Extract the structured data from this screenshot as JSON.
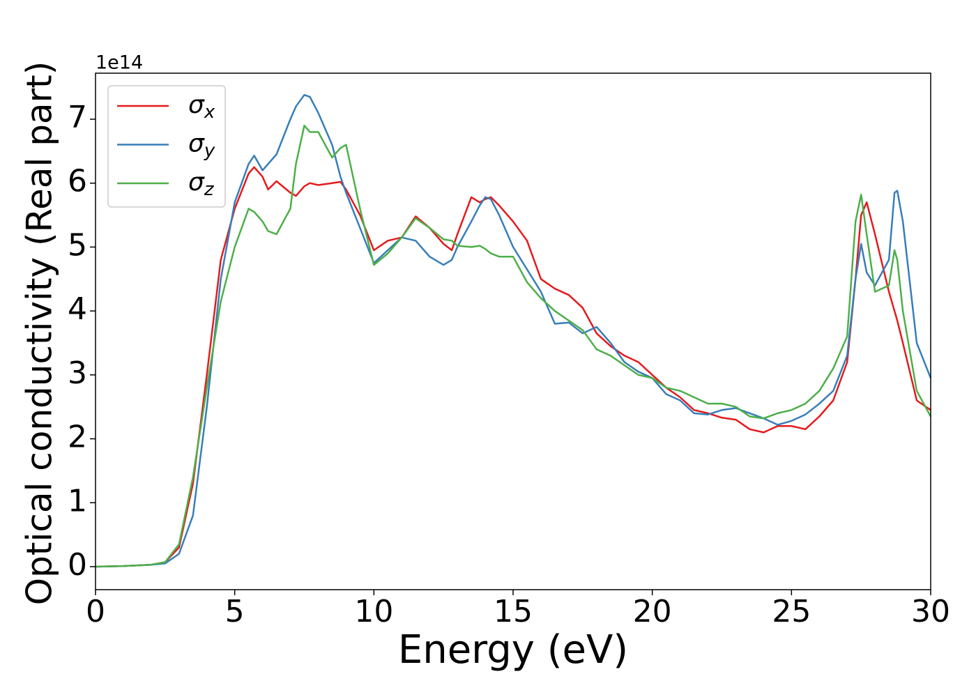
{
  "chart_data": {
    "type": "line",
    "ylabel": "Optical conductivity (Real part)",
    "xlabel": "Energy (eV)",
    "y_offset_label": "1e14",
    "x": [
      0,
      1,
      2,
      2.5,
      3,
      3.5,
      4,
      4.5,
      5,
      5.5,
      5.7,
      6,
      6.2,
      6.5,
      7,
      7.2,
      7.5,
      7.7,
      8,
      8.5,
      8.8,
      9,
      9.5,
      10,
      10.5,
      11,
      11.5,
      12,
      12.5,
      12.8,
      13,
      13.5,
      13.8,
      14,
      14.2,
      14.5,
      15,
      15.5,
      16,
      16.5,
      17,
      17.5,
      18,
      18.5,
      19,
      19.5,
      20,
      20.5,
      21,
      21.5,
      22,
      22.5,
      23,
      23.5,
      24,
      24.5,
      25,
      25.5,
      26,
      26.5,
      27,
      27.3,
      27.5,
      27.7,
      28,
      28.5,
      28.7,
      28.8,
      29,
      29.5,
      30
    ],
    "series": [
      {
        "name": "σx",
        "color": "#e41a1c",
        "values": [
          0,
          0.01,
          0.03,
          0.07,
          0.3,
          1.3,
          3.0,
          4.8,
          5.6,
          6.15,
          6.25,
          6.1,
          5.9,
          6.03,
          5.85,
          5.8,
          5.95,
          6.0,
          5.97,
          6.0,
          6.02,
          5.9,
          5.5,
          4.95,
          5.1,
          5.15,
          5.48,
          5.3,
          5.05,
          4.95,
          5.2,
          5.78,
          5.7,
          5.75,
          5.78,
          5.65,
          5.4,
          5.1,
          4.5,
          4.35,
          4.25,
          4.05,
          3.65,
          3.45,
          3.3,
          3.2,
          3.0,
          2.8,
          2.65,
          2.45,
          2.4,
          2.33,
          2.3,
          2.15,
          2.1,
          2.2,
          2.2,
          2.15,
          2.35,
          2.6,
          3.2,
          4.5,
          5.5,
          5.7,
          5.2,
          4.3,
          4.0,
          3.85,
          3.5,
          2.6,
          2.45
        ]
      },
      {
        "name": "σy",
        "color": "#377eb8",
        "values": [
          0,
          0.01,
          0.03,
          0.05,
          0.2,
          0.8,
          2.5,
          4.5,
          5.7,
          6.3,
          6.43,
          6.2,
          6.3,
          6.45,
          7.0,
          7.2,
          7.38,
          7.35,
          7.1,
          6.6,
          6.1,
          5.85,
          5.3,
          4.75,
          4.95,
          5.15,
          5.1,
          4.85,
          4.72,
          4.8,
          5.0,
          5.4,
          5.65,
          5.78,
          5.75,
          5.5,
          5.0,
          4.65,
          4.3,
          3.8,
          3.82,
          3.65,
          3.75,
          3.5,
          3.2,
          3.05,
          2.95,
          2.7,
          2.6,
          2.4,
          2.38,
          2.45,
          2.48,
          2.4,
          2.32,
          2.22,
          2.28,
          2.38,
          2.55,
          2.75,
          3.3,
          4.5,
          5.05,
          4.6,
          4.4,
          4.8,
          5.85,
          5.88,
          5.4,
          3.5,
          2.95
        ]
      },
      {
        "name": "σz",
        "color": "#4daf4a",
        "values": [
          0,
          0.01,
          0.03,
          0.07,
          0.35,
          1.4,
          2.8,
          4.15,
          5.0,
          5.6,
          5.55,
          5.4,
          5.25,
          5.2,
          5.6,
          6.3,
          6.9,
          6.8,
          6.8,
          6.4,
          6.55,
          6.6,
          5.6,
          4.72,
          4.9,
          5.15,
          5.45,
          5.3,
          5.12,
          5.1,
          5.02,
          5.0,
          5.02,
          4.97,
          4.9,
          4.85,
          4.85,
          4.45,
          4.2,
          4.0,
          3.85,
          3.7,
          3.4,
          3.3,
          3.15,
          3.0,
          2.95,
          2.8,
          2.75,
          2.65,
          2.55,
          2.55,
          2.5,
          2.35,
          2.32,
          2.4,
          2.45,
          2.55,
          2.75,
          3.1,
          3.6,
          5.4,
          5.82,
          5.2,
          4.3,
          4.4,
          4.95,
          4.8,
          4.0,
          2.75,
          2.35
        ]
      }
    ],
    "xlim": [
      0,
      30
    ],
    "xticks": [
      0,
      5,
      10,
      15,
      20,
      25,
      30
    ],
    "ylim": [
      -0.36,
      7.72
    ],
    "yticks": [
      0,
      1,
      2,
      3,
      4,
      5,
      6,
      7
    ],
    "legend": "upper left"
  }
}
